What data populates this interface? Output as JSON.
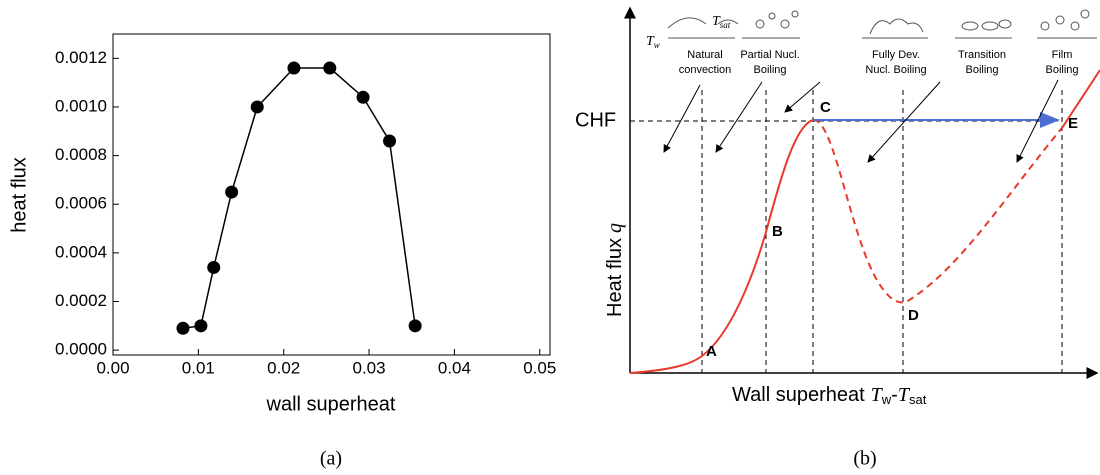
{
  "chart_data": [
    {
      "type": "line",
      "caption": "(a)",
      "x_label": "wall superheat",
      "y_label": "heat flux",
      "x": [
        0.0082,
        0.0103,
        0.0118,
        0.0139,
        0.0169,
        0.0212,
        0.0254,
        0.0293,
        0.0324,
        0.0354
      ],
      "values": [
        9e-05,
        0.0001,
        0.00034,
        0.00065,
        0.001,
        0.00116,
        0.00116,
        0.00104,
        0.00086,
        0.0001
      ],
      "color": "#000000",
      "xlim": [
        0,
        0.0512
      ],
      "ylim": [
        -2e-05,
        0.0013
      ],
      "xticks": [
        {
          "value": 0,
          "label": "0.00"
        },
        0.01,
        0.02,
        0.03,
        0.04,
        0.05
      ],
      "yticks": [
        {
          "value": 0,
          "label": "0.0000"
        },
        0.0002,
        0.0004,
        0.0006,
        0.0008,
        {
          "value": 0.001,
          "label": "0.0010"
        },
        0.0012
      ]
    },
    {
      "type": "schematic",
      "caption": "(b)",
      "y_label": [
        "Heat flux",
        "q"
      ],
      "x_label": [
        "Wall superheat",
        "T",
        "w",
        "-",
        "T",
        "sat"
      ],
      "chf_label": "CHF",
      "points": [
        "A",
        "B",
        "C",
        "D",
        "E"
      ],
      "wall_labels": [
        [
          "T",
          "w"
        ],
        [
          "T",
          "sat"
        ]
      ],
      "regimes": [
        [
          "Natural",
          "convection"
        ],
        [
          "Partial Nucl.",
          "Boiling"
        ],
        [
          "Fully Dev.",
          "Nucl. Boiling"
        ],
        [
          "Transition",
          "Boiling"
        ],
        [
          "Film",
          "Boiling"
        ]
      ]
    }
  ]
}
